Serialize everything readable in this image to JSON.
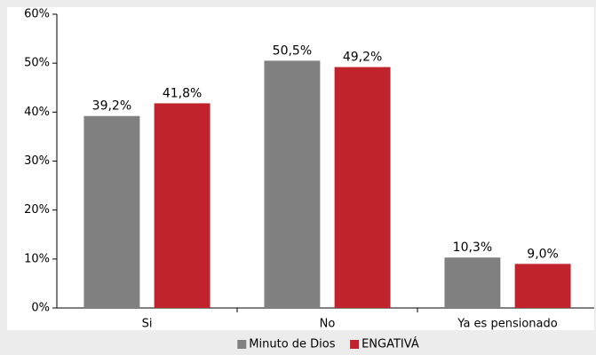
{
  "chart_data": {
    "type": "bar",
    "categories": [
      "Si",
      "No",
      "Ya es pensionado"
    ],
    "series": [
      {
        "name": "Minuto de Dios",
        "color": "#808080",
        "values": [
          39.2,
          50.5,
          10.3
        ],
        "value_labels": [
          "39,2%",
          "50,5%",
          "10,3%"
        ]
      },
      {
        "name": "ENGATIVÁ",
        "color": "#c0232c",
        "values": [
          41.8,
          49.2,
          9.0
        ],
        "value_labels": [
          "41,8%",
          "49,2%",
          "9,0%"
        ]
      }
    ],
    "ylim": [
      0,
      60
    ],
    "yticks": [
      {
        "value": 0,
        "label": "0%"
      },
      {
        "value": 10,
        "label": "10%"
      },
      {
        "value": 20,
        "label": "20%"
      },
      {
        "value": 30,
        "label": "30%"
      },
      {
        "value": 40,
        "label": "40%"
      },
      {
        "value": 50,
        "label": "50%"
      },
      {
        "value": 60,
        "label": "60%"
      }
    ],
    "grid": false,
    "legend": "bottom"
  }
}
